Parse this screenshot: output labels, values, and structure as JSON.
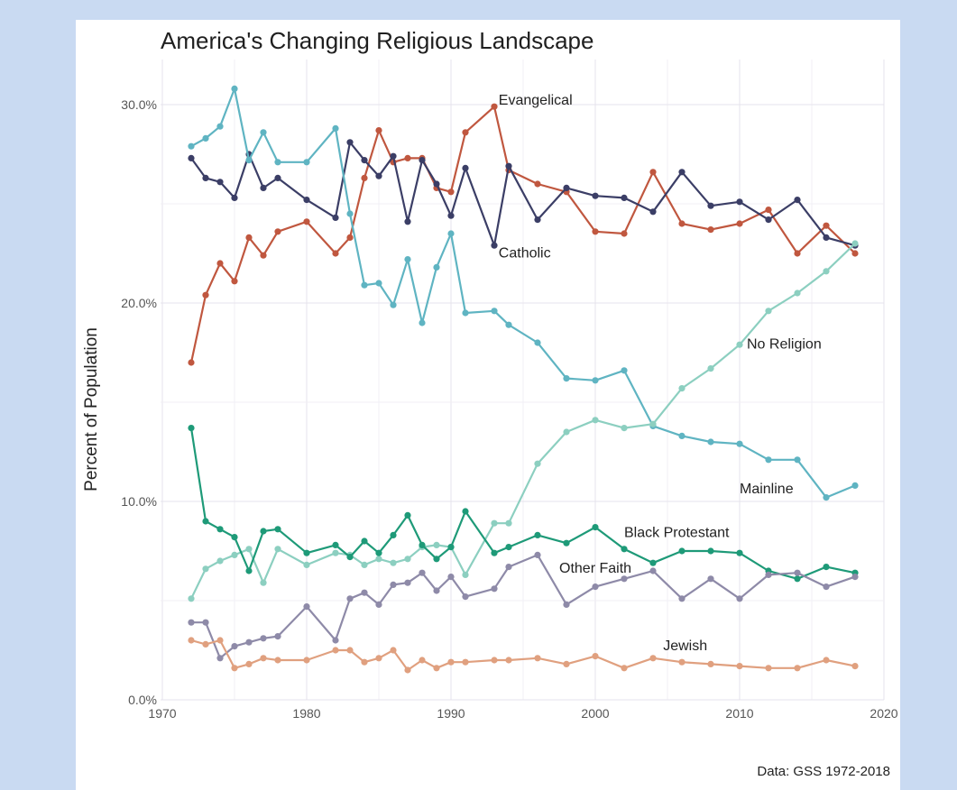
{
  "chart_data": {
    "type": "line",
    "title": "America's Changing Religious Landscape",
    "ylabel": "Percent of Population",
    "xlabel": "",
    "source": "Data: GSS 1972-2018",
    "xlim": [
      1970,
      2020
    ],
    "ylim": [
      0,
      30
    ],
    "x_ticks": [
      1970,
      1980,
      1990,
      2000,
      2010,
      2020
    ],
    "x_tick_labels": [
      "1970",
      "1980",
      "1990",
      "2000",
      "2010",
      "2020"
    ],
    "y_ticks": [
      0,
      10,
      20,
      30
    ],
    "y_tick_labels": [
      "0.0%",
      "10.0%",
      "20.0%",
      "30.0%"
    ],
    "grid": true,
    "legend": "direct labels",
    "series": [
      {
        "name": "Evangelical",
        "color": "#c0573f",
        "label_at": [
          1993.3,
          30.0
        ],
        "points": [
          [
            1972,
            17.0
          ],
          [
            1973,
            20.4
          ],
          [
            1974,
            22.0
          ],
          [
            1975,
            21.1
          ],
          [
            1976,
            23.3
          ],
          [
            1977,
            22.4
          ],
          [
            1978,
            23.6
          ],
          [
            1980,
            24.1
          ],
          [
            1982,
            22.5
          ],
          [
            1983,
            23.3
          ],
          [
            1984,
            26.3
          ],
          [
            1985,
            28.7
          ],
          [
            1986,
            27.1
          ],
          [
            1987,
            27.3
          ],
          [
            1988,
            27.3
          ],
          [
            1989,
            25.8
          ],
          [
            1990,
            25.6
          ],
          [
            1991,
            28.6
          ],
          [
            1993,
            29.9
          ],
          [
            1994,
            26.7
          ],
          [
            1996,
            26.0
          ],
          [
            1998,
            25.6
          ],
          [
            2000,
            23.6
          ],
          [
            2002,
            23.5
          ],
          [
            2004,
            26.6
          ],
          [
            2006,
            24.0
          ],
          [
            2008,
            23.7
          ],
          [
            2010,
            24.0
          ],
          [
            2012,
            24.7
          ],
          [
            2014,
            22.5
          ],
          [
            2016,
            23.9
          ],
          [
            2018,
            22.5
          ]
        ]
      },
      {
        "name": "Catholic",
        "color": "#3b3e66",
        "label_at": [
          1993.3,
          22.3
        ],
        "points": [
          [
            1972,
            27.3
          ],
          [
            1973,
            26.3
          ],
          [
            1974,
            26.1
          ],
          [
            1975,
            25.3
          ],
          [
            1976,
            27.5
          ],
          [
            1977,
            25.8
          ],
          [
            1978,
            26.3
          ],
          [
            1980,
            25.2
          ],
          [
            1982,
            24.3
          ],
          [
            1983,
            28.1
          ],
          [
            1984,
            27.2
          ],
          [
            1985,
            26.4
          ],
          [
            1986,
            27.4
          ],
          [
            1987,
            24.1
          ],
          [
            1988,
            27.2
          ],
          [
            1989,
            26.0
          ],
          [
            1990,
            24.4
          ],
          [
            1991,
            26.8
          ],
          [
            1993,
            22.9
          ],
          [
            1994,
            26.9
          ],
          [
            1996,
            24.2
          ],
          [
            1998,
            25.8
          ],
          [
            2000,
            25.4
          ],
          [
            2002,
            25.3
          ],
          [
            2004,
            24.6
          ],
          [
            2006,
            26.6
          ],
          [
            2008,
            24.9
          ],
          [
            2010,
            25.1
          ],
          [
            2012,
            24.2
          ],
          [
            2014,
            25.2
          ],
          [
            2016,
            23.3
          ],
          [
            2018,
            22.9
          ]
        ]
      },
      {
        "name": "Mainline",
        "color": "#5fb4c2",
        "label_at": [
          2010.0,
          10.4
        ],
        "points": [
          [
            1972,
            27.9
          ],
          [
            1973,
            28.3
          ],
          [
            1974,
            28.9
          ],
          [
            1975,
            30.8
          ],
          [
            1976,
            27.2
          ],
          [
            1977,
            28.6
          ],
          [
            1978,
            27.1
          ],
          [
            1980,
            27.1
          ],
          [
            1982,
            28.8
          ],
          [
            1983,
            24.5
          ],
          [
            1984,
            20.9
          ],
          [
            1985,
            21.0
          ],
          [
            1986,
            19.9
          ],
          [
            1987,
            22.2
          ],
          [
            1988,
            19.0
          ],
          [
            1989,
            21.8
          ],
          [
            1990,
            23.5
          ],
          [
            1991,
            19.5
          ],
          [
            1993,
            19.6
          ],
          [
            1994,
            18.9
          ],
          [
            1996,
            18.0
          ],
          [
            1998,
            16.2
          ],
          [
            2000,
            16.1
          ],
          [
            2002,
            16.6
          ],
          [
            2004,
            13.8
          ],
          [
            2006,
            13.3
          ],
          [
            2008,
            13.0
          ],
          [
            2010,
            12.9
          ],
          [
            2012,
            12.1
          ],
          [
            2014,
            12.1
          ],
          [
            2016,
            10.2
          ],
          [
            2018,
            10.8
          ]
        ]
      },
      {
        "name": "No Religion",
        "color": "#8ccfc0",
        "label_at": [
          2010.5,
          17.7
        ],
        "points": [
          [
            1972,
            5.1
          ],
          [
            1973,
            6.6
          ],
          [
            1974,
            7.0
          ],
          [
            1975,
            7.3
          ],
          [
            1976,
            7.6
          ],
          [
            1977,
            5.9
          ],
          [
            1978,
            7.6
          ],
          [
            1980,
            6.8
          ],
          [
            1982,
            7.4
          ],
          [
            1983,
            7.3
          ],
          [
            1984,
            6.8
          ],
          [
            1985,
            7.1
          ],
          [
            1986,
            6.9
          ],
          [
            1987,
            7.1
          ],
          [
            1988,
            7.7
          ],
          [
            1989,
            7.8
          ],
          [
            1990,
            7.7
          ],
          [
            1991,
            6.3
          ],
          [
            1993,
            8.9
          ],
          [
            1994,
            8.9
          ],
          [
            1996,
            11.9
          ],
          [
            1998,
            13.5
          ],
          [
            2000,
            14.1
          ],
          [
            2002,
            13.7
          ],
          [
            2004,
            13.9
          ],
          [
            2006,
            15.7
          ],
          [
            2008,
            16.7
          ],
          [
            2010,
            17.9
          ],
          [
            2012,
            19.6
          ],
          [
            2014,
            20.5
          ],
          [
            2016,
            21.6
          ],
          [
            2018,
            23.0
          ]
        ]
      },
      {
        "name": "Black Protestant",
        "color": "#1e9a78",
        "label_at": [
          2002.0,
          8.2
        ],
        "points": [
          [
            1972,
            13.7
          ],
          [
            1973,
            9.0
          ],
          [
            1974,
            8.6
          ],
          [
            1975,
            8.2
          ],
          [
            1976,
            6.5
          ],
          [
            1977,
            8.5
          ],
          [
            1978,
            8.6
          ],
          [
            1980,
            7.4
          ],
          [
            1982,
            7.8
          ],
          [
            1983,
            7.2
          ],
          [
            1984,
            8.0
          ],
          [
            1985,
            7.4
          ],
          [
            1986,
            8.3
          ],
          [
            1987,
            9.3
          ],
          [
            1988,
            7.8
          ],
          [
            1989,
            7.1
          ],
          [
            1990,
            7.7
          ],
          [
            1991,
            9.5
          ],
          [
            1993,
            7.4
          ],
          [
            1994,
            7.7
          ],
          [
            1996,
            8.3
          ],
          [
            1998,
            7.9
          ],
          [
            2000,
            8.7
          ],
          [
            2002,
            7.6
          ],
          [
            2004,
            6.9
          ],
          [
            2006,
            7.5
          ],
          [
            2008,
            7.5
          ],
          [
            2010,
            7.4
          ],
          [
            2012,
            6.5
          ],
          [
            2014,
            6.1
          ],
          [
            2016,
            6.7
          ],
          [
            2018,
            6.4
          ]
        ]
      },
      {
        "name": "Other Faith",
        "color": "#8e8aa8",
        "label_at": [
          1997.5,
          6.4
        ],
        "points": [
          [
            1972,
            3.9
          ],
          [
            1973,
            3.9
          ],
          [
            1974,
            2.1
          ],
          [
            1975,
            2.7
          ],
          [
            1976,
            2.9
          ],
          [
            1977,
            3.1
          ],
          [
            1978,
            3.2
          ],
          [
            1980,
            4.7
          ],
          [
            1982,
            3.0
          ],
          [
            1983,
            5.1
          ],
          [
            1984,
            5.4
          ],
          [
            1985,
            4.8
          ],
          [
            1986,
            5.8
          ],
          [
            1987,
            5.9
          ],
          [
            1988,
            6.4
          ],
          [
            1989,
            5.5
          ],
          [
            1990,
            6.2
          ],
          [
            1991,
            5.2
          ],
          [
            1993,
            5.6
          ],
          [
            1994,
            6.7
          ],
          [
            1996,
            7.3
          ],
          [
            1998,
            4.8
          ],
          [
            2000,
            5.7
          ],
          [
            2002,
            6.1
          ],
          [
            2004,
            6.5
          ],
          [
            2006,
            5.1
          ],
          [
            2008,
            6.1
          ],
          [
            2010,
            5.1
          ],
          [
            2012,
            6.3
          ],
          [
            2014,
            6.4
          ],
          [
            2016,
            5.7
          ],
          [
            2018,
            6.2
          ]
        ]
      },
      {
        "name": "Jewish",
        "color": "#e0a07f",
        "label_at": [
          2004.7,
          2.5
        ],
        "points": [
          [
            1972,
            3.0
          ],
          [
            1973,
            2.8
          ],
          [
            1974,
            3.0
          ],
          [
            1975,
            1.6
          ],
          [
            1976,
            1.8
          ],
          [
            1977,
            2.1
          ],
          [
            1978,
            2.0
          ],
          [
            1980,
            2.0
          ],
          [
            1982,
            2.5
          ],
          [
            1983,
            2.5
          ],
          [
            1984,
            1.9
          ],
          [
            1985,
            2.1
          ],
          [
            1986,
            2.5
          ],
          [
            1987,
            1.5
          ],
          [
            1988,
            2.0
          ],
          [
            1989,
            1.6
          ],
          [
            1990,
            1.9
          ],
          [
            1991,
            1.9
          ],
          [
            1993,
            2.0
          ],
          [
            1994,
            2.0
          ],
          [
            1996,
            2.1
          ],
          [
            1998,
            1.8
          ],
          [
            2000,
            2.2
          ],
          [
            2002,
            1.6
          ],
          [
            2004,
            2.1
          ],
          [
            2006,
            1.9
          ],
          [
            2008,
            1.8
          ],
          [
            2010,
            1.7
          ],
          [
            2012,
            1.6
          ],
          [
            2014,
            1.6
          ],
          [
            2016,
            2.0
          ],
          [
            2018,
            1.7
          ]
        ]
      }
    ]
  }
}
